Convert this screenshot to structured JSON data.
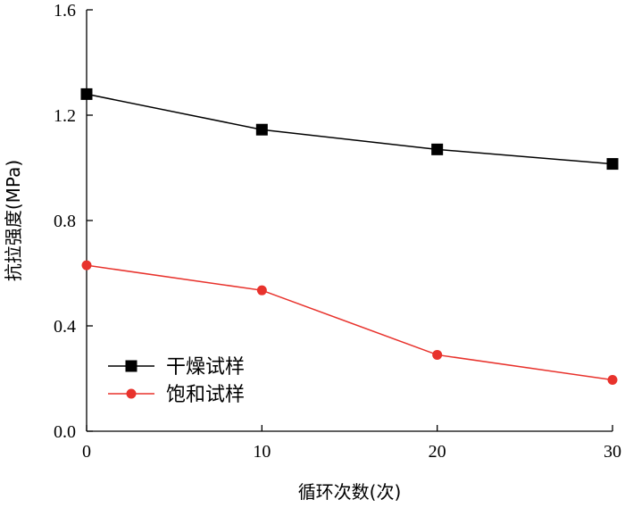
{
  "chart_data": {
    "type": "line",
    "title": "",
    "xlabel": "循环次数(次)",
    "ylabel": "抗拉强度(MPa)",
    "xlim": [
      0,
      30
    ],
    "ylim": [
      0.0,
      1.6
    ],
    "x_ticks": [
      0,
      10,
      20,
      30
    ],
    "x_tick_labels": [
      "0",
      "10",
      "20",
      "30"
    ],
    "y_ticks": [
      0.0,
      0.4,
      0.8,
      1.2,
      1.6
    ],
    "y_tick_labels": [
      "0.0",
      "0.4",
      "0.8",
      "1.2",
      "1.6"
    ],
    "grid": false,
    "legend_position": "bottom-left",
    "x": [
      0,
      10,
      20,
      30
    ],
    "series": [
      {
        "name": "干燥试样",
        "values": [
          1.28,
          1.145,
          1.07,
          1.015
        ],
        "color": "#000000",
        "marker": "square"
      },
      {
        "name": "饱和试样",
        "values": [
          0.63,
          0.535,
          0.29,
          0.195
        ],
        "color": "#e8322c",
        "marker": "circle"
      }
    ]
  }
}
